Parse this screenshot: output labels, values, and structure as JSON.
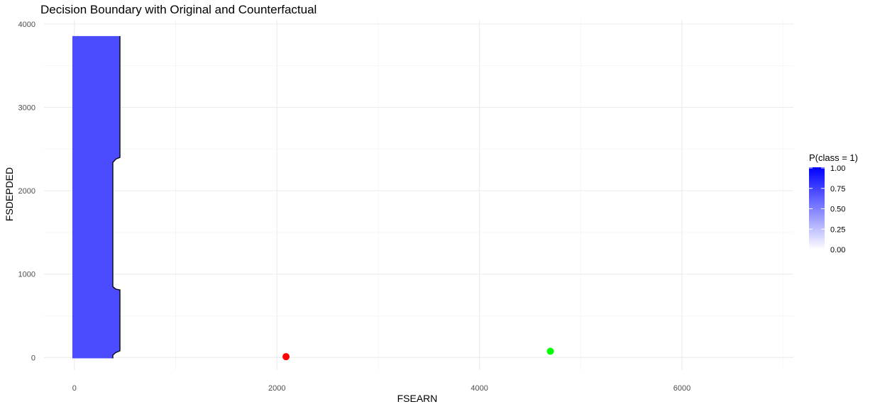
{
  "chart_data": {
    "type": "scatter",
    "title": "Decision Boundary with Original and Counterfactual",
    "xlabel": "FSEARN",
    "ylabel": "FSDEPDED",
    "xlim": [
      -300,
      7100
    ],
    "ylim": [
      -150,
      4050
    ],
    "x_ticks": [
      0,
      2000,
      4000,
      6000
    ],
    "y_ticks": [
      0,
      1000,
      2000,
      3000,
      4000
    ],
    "grid": true,
    "decision_region": {
      "probability": 1.0,
      "fill_color": "#4b4bff",
      "outline_color": "#000000",
      "boundary": [
        {
          "x": -20,
          "y": 3855
        },
        {
          "x": 450,
          "y": 3855
        },
        {
          "x": 450,
          "y": 2400
        },
        {
          "x": 410,
          "y": 2380
        },
        {
          "x": 380,
          "y": 2340
        },
        {
          "x": 380,
          "y": 850
        },
        {
          "x": 410,
          "y": 820
        },
        {
          "x": 450,
          "y": 810
        },
        {
          "x": 450,
          "y": 80
        },
        {
          "x": 410,
          "y": 60
        },
        {
          "x": 380,
          "y": 30
        },
        {
          "x": 380,
          "y": -10
        },
        {
          "x": -20,
          "y": -10
        }
      ]
    },
    "points": [
      {
        "name": "original",
        "x": 2090,
        "y": 10,
        "color": "#ff0000"
      },
      {
        "name": "counterfactual",
        "x": 4700,
        "y": 75,
        "color": "#00ff00"
      }
    ],
    "legend": {
      "title": "P(class = 1)",
      "position": "right",
      "colors": [
        "#ffffff",
        "#0000ff"
      ],
      "breaks": [
        "1.00",
        "0.75",
        "0.50",
        "0.25",
        "0.00"
      ]
    }
  }
}
